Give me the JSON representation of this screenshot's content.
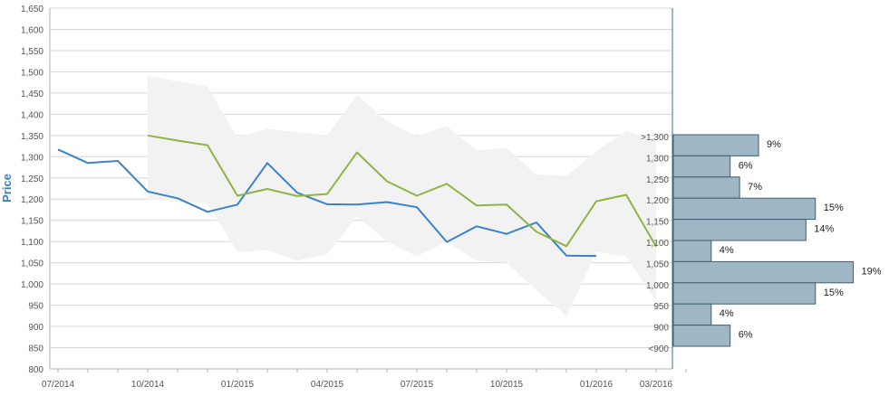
{
  "chart_data": {
    "type": "line",
    "ylabel": "Price",
    "ylim": [
      800,
      1650
    ],
    "ytick_labels": [
      "800",
      "850",
      "900",
      "950",
      "1,000",
      "1,050",
      "1,100",
      "1,150",
      "1,200",
      "1,250",
      "1,300",
      "1,350",
      "1,400",
      "1,450",
      "1,500",
      "1,550",
      "1,600",
      "1,650"
    ],
    "ytick_values": [
      800,
      850,
      900,
      950,
      1000,
      1050,
      1100,
      1150,
      1200,
      1250,
      1300,
      1350,
      1400,
      1450,
      1500,
      1550,
      1600,
      1650
    ],
    "xtick_labels": [
      "07/2014",
      "10/2014",
      "01/2015",
      "04/2015",
      "07/2015",
      "10/2015",
      "01/2016",
      "03/2016"
    ],
    "xtick_values": [
      "2014-07",
      "2014-10",
      "2015-01",
      "2015-04",
      "2015-07",
      "2015-10",
      "2016-01",
      "2016-03"
    ],
    "grid": true,
    "series": [
      {
        "color": "#3b82c8",
        "x": [
          "2014-07",
          "2014-08",
          "2014-09",
          "2014-10",
          "2014-11",
          "2014-12",
          "2015-01",
          "2015-02",
          "2015-03",
          "2015-04",
          "2015-05",
          "2015-06",
          "2015-07",
          "2015-08",
          "2015-09",
          "2015-10",
          "2015-11",
          "2015-12",
          "2016-01"
        ],
        "values": [
          1317,
          1285,
          1290,
          1218,
          1202,
          1170,
          1187,
          1285,
          1215,
          1188,
          1187,
          1193,
          1181,
          1099,
          1136,
          1118,
          1145,
          1067,
          1066
        ]
      },
      {
        "color": "#8fb443",
        "x": [
          "2014-10",
          "2014-11",
          "2014-12",
          "2015-01",
          "2015-02",
          "2015-03",
          "2015-04",
          "2015-05",
          "2015-06",
          "2015-07",
          "2015-08",
          "2015-09",
          "2015-10",
          "2015-11",
          "2015-12",
          "2016-01",
          "2016-02",
          "2016-03"
        ],
        "values": [
          1350,
          1338,
          1327,
          1208,
          1224,
          1207,
          1212,
          1310,
          1242,
          1208,
          1236,
          1185,
          1187,
          1123,
          1089,
          1195,
          1210,
          1088
        ]
      }
    ],
    "band": {
      "color": "#f2f2f2",
      "x": [
        "2014-10",
        "2014-11",
        "2014-12",
        "2015-01",
        "2015-02",
        "2015-03",
        "2015-04",
        "2015-05",
        "2015-06",
        "2015-07",
        "2015-08",
        "2015-09",
        "2015-10",
        "2015-11",
        "2015-12",
        "2016-01",
        "2016-02",
        "2016-03"
      ],
      "upper": [
        1490,
        1478,
        1465,
        1345,
        1365,
        1358,
        1350,
        1446,
        1383,
        1348,
        1372,
        1315,
        1320,
        1258,
        1255,
        1313,
        1360,
        1340
      ],
      "lower": [
        1200,
        1195,
        1190,
        1075,
        1080,
        1055,
        1070,
        1160,
        1100,
        1065,
        1100,
        1055,
        1050,
        985,
        925,
        1075,
        1065,
        960
      ]
    },
    "histogram": {
      "color": "#9fb6c4",
      "labels": [
        ">1,300",
        "1,300",
        "1,250",
        "1,200",
        "1,150",
        "1,100",
        "1,050",
        "1,000",
        "950",
        "900",
        "<900"
      ],
      "percent_labels": [
        "9%",
        "6%",
        "7%",
        "15%",
        "14%",
        "4%",
        "19%",
        "15%",
        "4%",
        "6%",
        ""
      ],
      "values": [
        9,
        6,
        7,
        15,
        14,
        4,
        19,
        15,
        4,
        6,
        0
      ]
    }
  }
}
